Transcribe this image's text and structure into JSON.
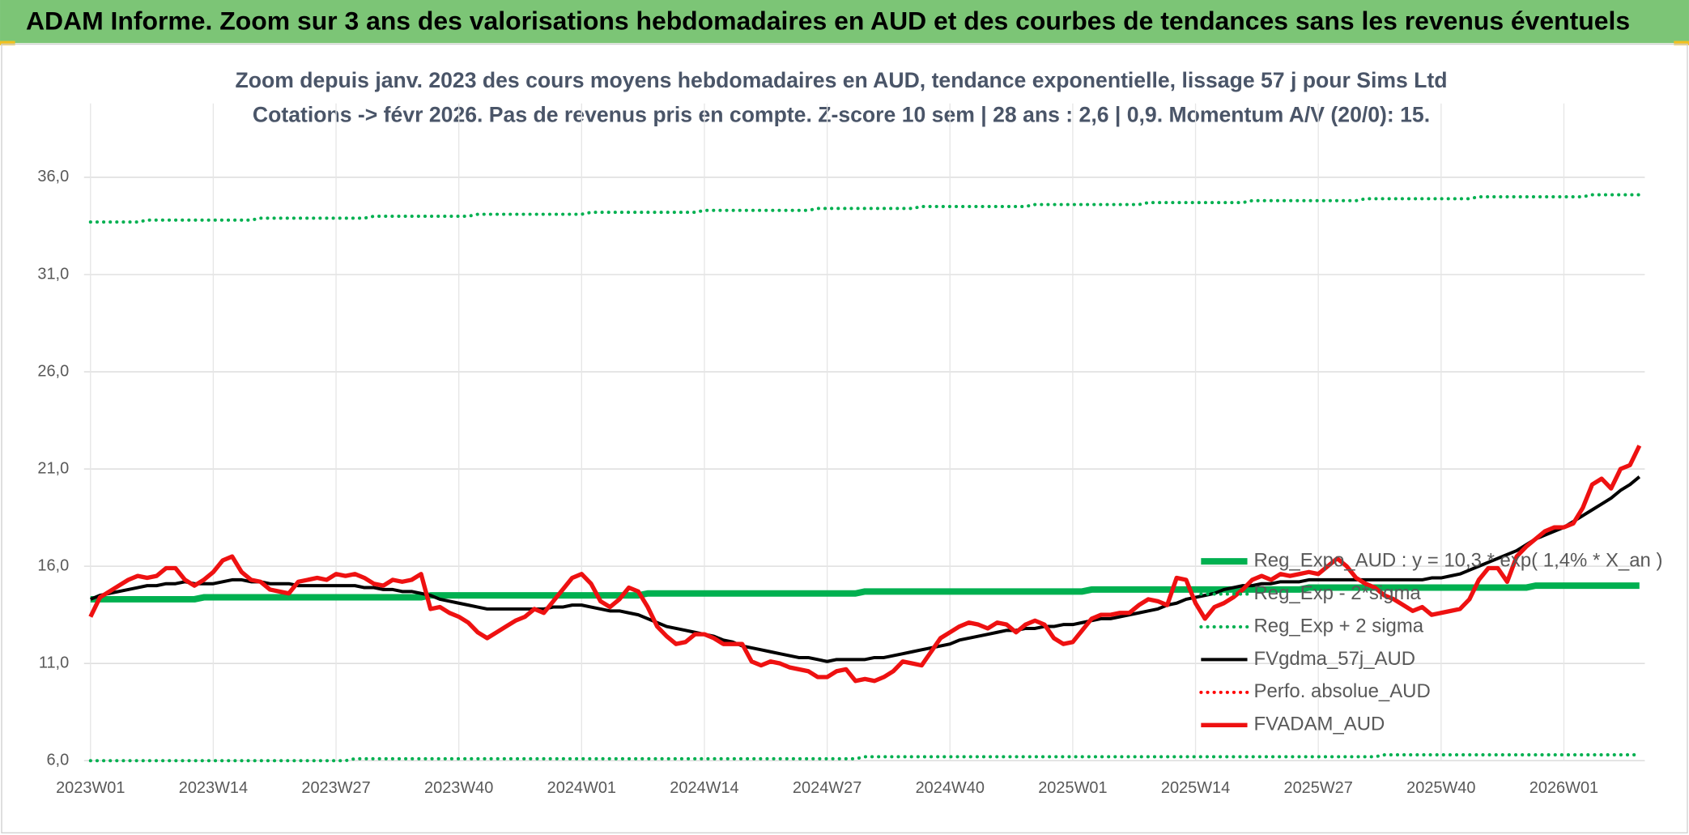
{
  "header": {
    "title": "ADAM Informe. Zoom sur 3 ans des valorisations hebdomadaires en AUD et des courbes de tendances sans les revenus éventuels"
  },
  "chart_data": {
    "type": "line",
    "title": "Zoom depuis janv. 2023 des cours moyens hebdomadaires en AUD, tendance exponentielle, lissage 57 j pour Sims Ltd",
    "subtitle": "Cotations -> févr 2026. Pas de revenus pris en compte. Z-score 10 sem | 28 ans : 2,6 | 0,9. Momentum A/V (20/0): 15.",
    "ylim": [
      6,
      39.8
    ],
    "yticks": [
      {
        "value": 6,
        "label": "6,0"
      },
      {
        "value": 11,
        "label": "11,0"
      },
      {
        "value": 16,
        "label": "16,0"
      },
      {
        "value": 21,
        "label": "21,0"
      },
      {
        "value": 26,
        "label": "26,0"
      },
      {
        "value": 31,
        "label": "31,0"
      },
      {
        "value": 36,
        "label": "36,0"
      }
    ],
    "grid": true,
    "legend": "lower-right",
    "categories": [
      "2023W01",
      null,
      null,
      null,
      null,
      null,
      null,
      null,
      null,
      null,
      null,
      null,
      null,
      "2023W14",
      null,
      null,
      null,
      null,
      null,
      null,
      null,
      null,
      null,
      null,
      null,
      null,
      "2023W27",
      null,
      null,
      null,
      null,
      null,
      null,
      null,
      null,
      null,
      null,
      null,
      null,
      "2023W40",
      null,
      null,
      null,
      null,
      null,
      null,
      null,
      null,
      null,
      null,
      null,
      null,
      "2024W01",
      null,
      null,
      null,
      null,
      null,
      null,
      null,
      null,
      null,
      null,
      null,
      null,
      "2024W14",
      null,
      null,
      null,
      null,
      null,
      null,
      null,
      null,
      null,
      null,
      null,
      null,
      "2024W27",
      null,
      null,
      null,
      null,
      null,
      null,
      null,
      null,
      null,
      null,
      null,
      null,
      "2024W40",
      null,
      null,
      null,
      null,
      null,
      null,
      null,
      null,
      null,
      null,
      null,
      null,
      "2025W01",
      null,
      null,
      null,
      null,
      null,
      null,
      null,
      null,
      null,
      null,
      null,
      null,
      "2025W14",
      null,
      null,
      null,
      null,
      null,
      null,
      null,
      null,
      null,
      null,
      null,
      null,
      "2025W27",
      null,
      null,
      null,
      null,
      null,
      null,
      null,
      null,
      null,
      null,
      null,
      null,
      "2025W40",
      null,
      null,
      null,
      null,
      null,
      null,
      null,
      null,
      null,
      null,
      null,
      null,
      "2026W01",
      null,
      null,
      null,
      null,
      null,
      null,
      null,
      null
    ],
    "series": [
      {
        "name": "Reg_Expo_AUD : y = 10,3 * exp( 1,4% *  X_an )",
        "color": "#00b050",
        "dash": false,
        "values": [
          14.3,
          14.3,
          14.3,
          14.3,
          14.3,
          14.3,
          14.3,
          14.3,
          14.3,
          14.3,
          14.3,
          14.3,
          14.4,
          14.4,
          14.4,
          14.4,
          14.4,
          14.4,
          14.4,
          14.4,
          14.4,
          14.4,
          14.4,
          14.4,
          14.4,
          14.4,
          14.4,
          14.4,
          14.4,
          14.4,
          14.4,
          14.4,
          14.4,
          14.4,
          14.4,
          14.4,
          14.5,
          14.5,
          14.5,
          14.5,
          14.5,
          14.5,
          14.5,
          14.5,
          14.5,
          14.5,
          14.5,
          14.5,
          14.5,
          14.5,
          14.5,
          14.5,
          14.5,
          14.5,
          14.5,
          14.5,
          14.5,
          14.5,
          14.5,
          14.6,
          14.6,
          14.6,
          14.6,
          14.6,
          14.6,
          14.6,
          14.6,
          14.6,
          14.6,
          14.6,
          14.6,
          14.6,
          14.6,
          14.6,
          14.6,
          14.6,
          14.6,
          14.6,
          14.6,
          14.6,
          14.6,
          14.6,
          14.7,
          14.7,
          14.7,
          14.7,
          14.7,
          14.7,
          14.7,
          14.7,
          14.7,
          14.7,
          14.7,
          14.7,
          14.7,
          14.7,
          14.7,
          14.7,
          14.7,
          14.7,
          14.7,
          14.7,
          14.7,
          14.7,
          14.7,
          14.7,
          14.8,
          14.8,
          14.8,
          14.8,
          14.8,
          14.8,
          14.8,
          14.8,
          14.8,
          14.8,
          14.8,
          14.8,
          14.8,
          14.8,
          14.8,
          14.8,
          14.8,
          14.8,
          14.8,
          14.8,
          14.8,
          14.8,
          14.8,
          14.9,
          14.9,
          14.9,
          14.9,
          14.9,
          14.9,
          14.9,
          14.9,
          14.9,
          14.9,
          14.9,
          14.9,
          14.9,
          14.9,
          14.9,
          14.9,
          14.9,
          14.9,
          14.9,
          14.9,
          14.9,
          14.9,
          14.9,
          14.9,
          15.0,
          15.0,
          15.0,
          15.0,
          15.0,
          15.0,
          15.0,
          15.0,
          15.0,
          15.0,
          15.0,
          15.0
        ]
      },
      {
        "name": "Reg_Exp - 2*sigma",
        "color": "#00b050",
        "dash": true,
        "values": [
          6.0,
          6.0,
          6.0,
          6.0,
          6.0,
          6.0,
          6.0,
          6.0,
          6.0,
          6.0,
          6.0,
          6.0,
          6.0,
          6.0,
          6.0,
          6.0,
          6.0,
          6.0,
          6.0,
          6.0,
          6.0,
          6.0,
          6.0,
          6.0,
          6.0,
          6.0,
          6.0,
          6.0,
          6.1,
          6.1,
          6.1,
          6.1,
          6.1,
          6.1,
          6.1,
          6.1,
          6.1,
          6.1,
          6.1,
          6.1,
          6.1,
          6.1,
          6.1,
          6.1,
          6.1,
          6.1,
          6.1,
          6.1,
          6.1,
          6.1,
          6.1,
          6.1,
          6.1,
          6.1,
          6.1,
          6.1,
          6.1,
          6.1,
          6.1,
          6.1,
          6.1,
          6.1,
          6.1,
          6.1,
          6.1,
          6.1,
          6.1,
          6.1,
          6.1,
          6.1,
          6.1,
          6.1,
          6.1,
          6.1,
          6.1,
          6.1,
          6.1,
          6.1,
          6.1,
          6.1,
          6.1,
          6.1,
          6.2,
          6.2,
          6.2,
          6.2,
          6.2,
          6.2,
          6.2,
          6.2,
          6.2,
          6.2,
          6.2,
          6.2,
          6.2,
          6.2,
          6.2,
          6.2,
          6.2,
          6.2,
          6.2,
          6.2,
          6.2,
          6.2,
          6.2,
          6.2,
          6.2,
          6.2,
          6.2,
          6.2,
          6.2,
          6.2,
          6.2,
          6.2,
          6.2,
          6.2,
          6.2,
          6.2,
          6.2,
          6.2,
          6.2,
          6.2,
          6.2,
          6.2,
          6.2,
          6.2,
          6.2,
          6.2,
          6.2,
          6.2,
          6.2,
          6.2,
          6.2,
          6.2,
          6.2,
          6.2,
          6.2,
          6.3,
          6.3,
          6.3,
          6.3,
          6.3,
          6.3,
          6.3,
          6.3,
          6.3,
          6.3,
          6.3,
          6.3,
          6.3,
          6.3,
          6.3,
          6.3,
          6.3,
          6.3,
          6.3,
          6.3,
          6.3,
          6.3,
          6.3,
          6.3,
          6.3,
          6.3,
          6.3,
          6.3
        ]
      },
      {
        "name": "Reg_Exp + 2 sigma",
        "color": "#00b050",
        "dash": true,
        "values": [
          33.7,
          33.7,
          33.7,
          33.7,
          33.7,
          33.7,
          33.8,
          33.8,
          33.8,
          33.8,
          33.8,
          33.8,
          33.8,
          33.8,
          33.8,
          33.8,
          33.8,
          33.8,
          33.9,
          33.9,
          33.9,
          33.9,
          33.9,
          33.9,
          33.9,
          33.9,
          33.9,
          33.9,
          33.9,
          33.9,
          34.0,
          34.0,
          34.0,
          34.0,
          34.0,
          34.0,
          34.0,
          34.0,
          34.0,
          34.0,
          34.0,
          34.1,
          34.1,
          34.1,
          34.1,
          34.1,
          34.1,
          34.1,
          34.1,
          34.1,
          34.1,
          34.1,
          34.1,
          34.2,
          34.2,
          34.2,
          34.2,
          34.2,
          34.2,
          34.2,
          34.2,
          34.2,
          34.2,
          34.2,
          34.2,
          34.3,
          34.3,
          34.3,
          34.3,
          34.3,
          34.3,
          34.3,
          34.3,
          34.3,
          34.3,
          34.3,
          34.3,
          34.4,
          34.4,
          34.4,
          34.4,
          34.4,
          34.4,
          34.4,
          34.4,
          34.4,
          34.4,
          34.4,
          34.5,
          34.5,
          34.5,
          34.5,
          34.5,
          34.5,
          34.5,
          34.5,
          34.5,
          34.5,
          34.5,
          34.5,
          34.6,
          34.6,
          34.6,
          34.6,
          34.6,
          34.6,
          34.6,
          34.6,
          34.6,
          34.6,
          34.6,
          34.6,
          34.7,
          34.7,
          34.7,
          34.7,
          34.7,
          34.7,
          34.7,
          34.7,
          34.7,
          34.7,
          34.7,
          34.8,
          34.8,
          34.8,
          34.8,
          34.8,
          34.8,
          34.8,
          34.8,
          34.8,
          34.8,
          34.8,
          34.8,
          34.9,
          34.9,
          34.9,
          34.9,
          34.9,
          34.9,
          34.9,
          34.9,
          34.9,
          34.9,
          34.9,
          34.9,
          35.0,
          35.0,
          35.0,
          35.0,
          35.0,
          35.0,
          35.0,
          35.0,
          35.0,
          35.0,
          35.0,
          35.0,
          35.1,
          35.1,
          35.1,
          35.1,
          35.1,
          35.1
        ]
      },
      {
        "name": "FVgdma_57j_AUD",
        "color": "#000000",
        "dash": false,
        "values": [
          14.3,
          14.5,
          14.6,
          14.7,
          14.8,
          14.9,
          15.0,
          15.0,
          15.1,
          15.1,
          15.2,
          15.1,
          15.1,
          15.1,
          15.2,
          15.3,
          15.3,
          15.2,
          15.2,
          15.1,
          15.1,
          15.1,
          15.0,
          15.0,
          15.0,
          15.0,
          15.0,
          15.0,
          15.0,
          14.9,
          14.9,
          14.8,
          14.8,
          14.7,
          14.7,
          14.6,
          14.5,
          14.3,
          14.2,
          14.1,
          14.0,
          13.9,
          13.8,
          13.8,
          13.8,
          13.8,
          13.8,
          13.8,
          13.8,
          13.9,
          13.9,
          14.0,
          14.0,
          13.9,
          13.8,
          13.7,
          13.7,
          13.6,
          13.5,
          13.3,
          13.1,
          12.9,
          12.8,
          12.7,
          12.6,
          12.5,
          12.4,
          12.2,
          12.1,
          11.9,
          11.8,
          11.7,
          11.6,
          11.5,
          11.4,
          11.3,
          11.3,
          11.2,
          11.1,
          11.2,
          11.2,
          11.2,
          11.2,
          11.3,
          11.3,
          11.4,
          11.5,
          11.6,
          11.7,
          11.8,
          11.9,
          12.0,
          12.2,
          12.3,
          12.4,
          12.5,
          12.6,
          12.7,
          12.7,
          12.8,
          12.8,
          12.9,
          12.9,
          13.0,
          13.0,
          13.1,
          13.2,
          13.3,
          13.3,
          13.4,
          13.5,
          13.6,
          13.7,
          13.8,
          14.0,
          14.1,
          14.3,
          14.4,
          14.5,
          14.6,
          14.8,
          14.9,
          15.0,
          15.0,
          15.1,
          15.1,
          15.2,
          15.2,
          15.2,
          15.3,
          15.3,
          15.3,
          15.3,
          15.3,
          15.3,
          15.3,
          15.3,
          15.3,
          15.3,
          15.3,
          15.3,
          15.3,
          15.4,
          15.4,
          15.5,
          15.6,
          15.8,
          16.0,
          16.2,
          16.4,
          16.6,
          16.8,
          17.1,
          17.4,
          17.6,
          17.8,
          18.0,
          18.3,
          18.6,
          18.9,
          19.2,
          19.5,
          19.9,
          20.2,
          20.6
        ]
      },
      {
        "name": "Perfo. absolue_AUD",
        "color": "#ff0000",
        "dash": true,
        "values": [
          null,
          null,
          null,
          null,
          null,
          null,
          null,
          null,
          null,
          null,
          null,
          null,
          null,
          null,
          null,
          null,
          null,
          null,
          null,
          null,
          null,
          null,
          null,
          null,
          null,
          null,
          null,
          null,
          null,
          null,
          null,
          null,
          null,
          null,
          null,
          null,
          null,
          null,
          null,
          null,
          null,
          null,
          null,
          null,
          null,
          null,
          null,
          null,
          null,
          null,
          null,
          null,
          null,
          null,
          null,
          null,
          null,
          null,
          null,
          null,
          null,
          null,
          null,
          null,
          null,
          null,
          null,
          null,
          null,
          null,
          null,
          null,
          null,
          null,
          null,
          null,
          null,
          null,
          null,
          null,
          null,
          null,
          null,
          null,
          null,
          null,
          null,
          null,
          null,
          null,
          null,
          null,
          null,
          null,
          null,
          null,
          null,
          null,
          null,
          null,
          null,
          null,
          null,
          null,
          null,
          null,
          null,
          null,
          null,
          null,
          null,
          null,
          null,
          null,
          null,
          null,
          null,
          null,
          null,
          null,
          null,
          null,
          null,
          null,
          null,
          null,
          null,
          null,
          null,
          null,
          null,
          null,
          null,
          null,
          null,
          null,
          null,
          null,
          null,
          null,
          null,
          null,
          null,
          null,
          null,
          null,
          null,
          null,
          null,
          null,
          null,
          null,
          null,
          null,
          null,
          null,
          null,
          null,
          null,
          null,
          null,
          null,
          null,
          null,
          null
        ]
      },
      {
        "name": "FVADAM_AUD",
        "color": "#ee1111",
        "dash": false,
        "values": [
          13.4,
          14.4,
          14.7,
          15.0,
          15.3,
          15.5,
          15.4,
          15.5,
          15.9,
          15.9,
          15.3,
          15.0,
          15.3,
          15.7,
          16.3,
          16.5,
          15.7,
          15.3,
          15.2,
          14.8,
          14.7,
          14.6,
          15.2,
          15.3,
          15.4,
          15.3,
          15.6,
          15.5,
          15.6,
          15.4,
          15.1,
          15.0,
          15.3,
          15.2,
          15.3,
          15.6,
          13.8,
          13.9,
          13.6,
          13.4,
          13.1,
          12.6,
          12.3,
          12.6,
          12.9,
          13.2,
          13.4,
          13.8,
          13.6,
          14.2,
          14.8,
          15.4,
          15.6,
          15.1,
          14.2,
          13.9,
          14.3,
          14.9,
          14.7,
          13.9,
          12.9,
          12.4,
          12.0,
          12.1,
          12.5,
          12.5,
          12.3,
          12.0,
          12.0,
          12.0,
          11.1,
          10.9,
          11.1,
          11.0,
          10.8,
          10.7,
          10.6,
          10.3,
          10.3,
          10.6,
          10.7,
          10.1,
          10.2,
          10.1,
          10.3,
          10.6,
          11.1,
          11.0,
          10.9,
          11.6,
          12.3,
          12.6,
          12.9,
          13.1,
          13.0,
          12.8,
          13.1,
          13.0,
          12.6,
          13.0,
          13.2,
          13.0,
          12.3,
          12.0,
          12.1,
          12.7,
          13.3,
          13.5,
          13.5,
          13.6,
          13.6,
          14.0,
          14.3,
          14.2,
          14.0,
          15.4,
          15.3,
          14.1,
          13.3,
          13.9,
          14.1,
          14.4,
          14.8,
          15.3,
          15.5,
          15.3,
          15.6,
          15.5,
          15.6,
          15.7,
          15.6,
          16.0,
          16.4,
          16.0,
          15.4,
          15.1,
          14.9,
          14.5,
          14.3,
          14.0,
          13.7,
          13.9,
          13.5,
          13.6,
          13.7,
          13.8,
          14.3,
          15.3,
          15.9,
          15.9,
          15.2,
          16.5,
          17.0,
          17.4,
          17.8,
          18.0,
          18.0,
          18.2,
          19.0,
          20.2,
          20.5,
          20.0,
          21.0,
          21.2,
          22.2
        ]
      }
    ]
  }
}
